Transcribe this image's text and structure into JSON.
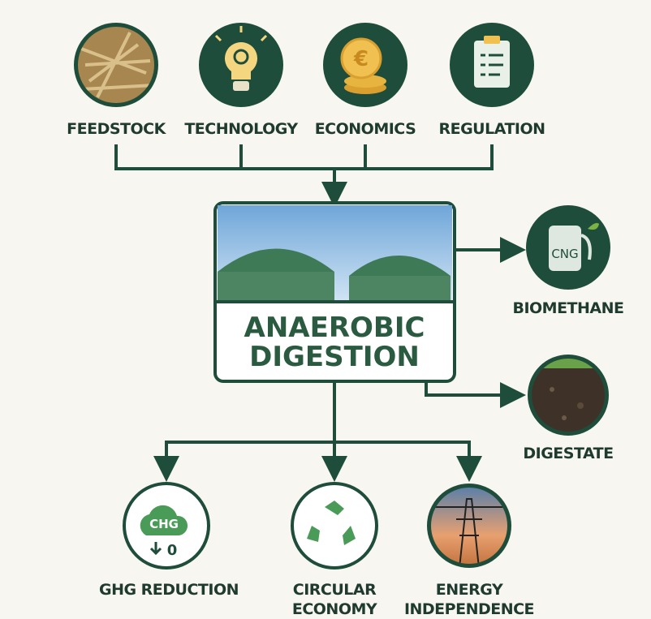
{
  "inputs": [
    {
      "label": "FEEDSTOCK"
    },
    {
      "label": "TECHNOLOGY"
    },
    {
      "label": "ECONOMICS",
      "icon_text": "€"
    },
    {
      "label": "REGULATION"
    }
  ],
  "center": {
    "title_lines": [
      "ANAEROBIC",
      "DIGESTION"
    ]
  },
  "products": [
    {
      "label": "BIOMETHANE",
      "icon_text": "CNG"
    },
    {
      "label": "DIGESTATE"
    }
  ],
  "benefits": [
    {
      "label_lines": [
        "GHG REDUCTION"
      ],
      "icon_text": [
        "CHG",
        "0"
      ]
    },
    {
      "label_lines": [
        "CIRCULAR",
        "ECONOMY"
      ]
    },
    {
      "label_lines": [
        "ENERGY",
        "INDEPENDENCE"
      ]
    }
  ]
}
